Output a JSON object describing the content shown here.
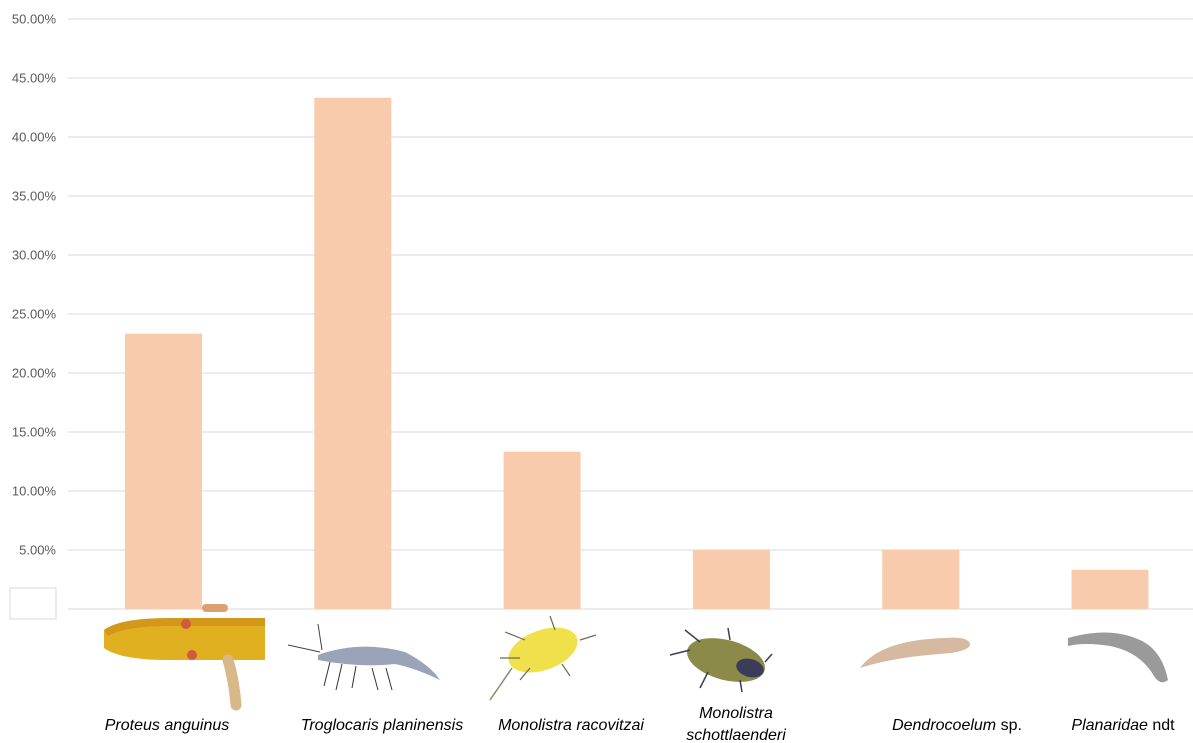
{
  "chart_data": {
    "type": "bar",
    "categories": [
      "Proteus anguinus",
      "Troglocaris planinensis",
      "Monolistra racovitzai",
      "Monolistra schottlaenderi",
      "Dendrocoelum sp.",
      "Planaridae ndt"
    ],
    "category_label_parts": [
      [
        {
          "text": "Proteus anguinus",
          "italic": true
        }
      ],
      [
        {
          "text": "Troglocaris planinensis",
          "italic": true
        }
      ],
      [
        {
          "text": "Monolistra racovitzai",
          "italic": true
        }
      ],
      [
        {
          "text": "Monolistra",
          "italic": true
        },
        {
          "text": "schottlaenderi",
          "italic": true,
          "newline": true
        }
      ],
      [
        {
          "text": "Dendrocoelum",
          "italic": true
        },
        {
          "text": " sp.",
          "italic": false
        }
      ],
      [
        {
          "text": "Planaridae",
          "italic": true
        },
        {
          "text": " ndt",
          "italic": false
        }
      ]
    ],
    "values": [
      23.33,
      43.33,
      13.33,
      5.0,
      5.0,
      3.33
    ],
    "value_unit": "%",
    "ylim": [
      0,
      50
    ],
    "yticks": [
      5,
      10,
      15,
      20,
      25,
      30,
      35,
      40,
      45,
      50
    ],
    "ytick_labels": [
      "5.00%",
      "10.00%",
      "15.00%",
      "20.00%",
      "25.00%",
      "30.00%",
      "35.00%",
      "40.00%",
      "45.00%",
      "50.00%"
    ],
    "title": "",
    "xlabel": "",
    "ylabel": "",
    "grid": true,
    "legend": "none",
    "colors": {
      "bar": "#F8CBAD",
      "grid": "#D9D9D9",
      "tick_text": "#595959",
      "label_text": "#000000"
    },
    "species_images": [
      "olm-image",
      "cave-shrimp-image",
      "yellow-isopod-image",
      "green-isopod-image",
      "flatworm-image",
      "grey-flatworm-image"
    ]
  }
}
